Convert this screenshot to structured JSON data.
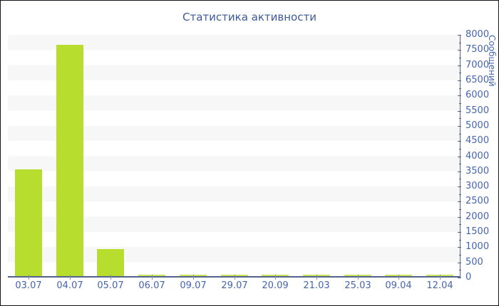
{
  "window": {
    "background_color": "#ffffff",
    "border_color": "#14141c"
  },
  "chart_data": {
    "type": "bar",
    "title": "Статистика активности",
    "title_color": "#3c5a9a",
    "categories": [
      "03.07",
      "04.07",
      "05.07",
      "06.07",
      "09.07",
      "29.07",
      "20.09",
      "21.03",
      "25.03",
      "09.04",
      "12.04"
    ],
    "values": [
      3550,
      7670,
      890,
      40,
      40,
      40,
      40,
      40,
      40,
      40,
      40
    ],
    "xlabel": "",
    "ylabel": "Сообщений",
    "ylim": [
      0,
      8000
    ],
    "ytick_step": 500,
    "ytick_minor_step": 250,
    "ytick_labels": [
      "8000",
      "7500",
      "7000",
      "6500",
      "6000",
      "5500",
      "5000",
      "4500",
      "4000",
      "3500",
      "3000",
      "2500",
      "2000",
      "1500",
      "1000",
      "500",
      "0"
    ],
    "yaxis_position": "right",
    "legend": "none",
    "grid": "horizontal striped bands per 500 units",
    "bar_color": "#b7de2e",
    "bar_color_small": "#c6e45c",
    "axis_color": "#55628e",
    "tick_label_color": "#4565ae",
    "stripe_color": "#f7f7f7"
  }
}
